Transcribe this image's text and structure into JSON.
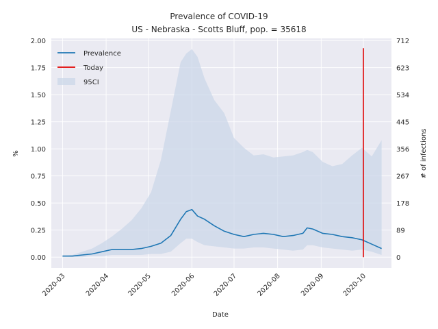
{
  "chart_data": {
    "type": "line",
    "title": "Prevalence of COVID-19",
    "subtitle": "US - Nebraska - Scotts Bluff, pop. = 35618",
    "xlabel": "Date",
    "ylabel": "%",
    "ylabel_right": "# of infections",
    "ylim": [
      -0.1,
      2.02
    ],
    "xlim": [
      "2020-02-22",
      "2020-10-21"
    ],
    "yticks": [
      "0.00",
      "0.25",
      "0.50",
      "0.75",
      "1.00",
      "1.25",
      "1.50",
      "1.75",
      "2.00"
    ],
    "yticks_right": [
      "0",
      "89",
      "178",
      "267",
      "356",
      "445",
      "534",
      "623",
      "712"
    ],
    "xticks": [
      "2020-03",
      "2020-04",
      "2020-05",
      "2020-06",
      "2020-07",
      "2020-08",
      "2020-09",
      "2020-10"
    ],
    "grid": true,
    "legend_position": "top-left",
    "legend": [
      "Prevalence",
      "Today",
      "95CI"
    ],
    "colors": {
      "prevalence": "#1f77b4",
      "today": "#e00000",
      "ci": "#c9d6e8",
      "background": "#eaeaf2",
      "grid": "#ffffff"
    },
    "today": "2020-10-01",
    "today_range": [
      0.0,
      1.93
    ],
    "series": [
      {
        "name": "Prevalence",
        "x": [
          "2020-03-01",
          "2020-03-08",
          "2020-03-15",
          "2020-03-22",
          "2020-03-29",
          "2020-04-05",
          "2020-04-12",
          "2020-04-19",
          "2020-04-26",
          "2020-05-03",
          "2020-05-10",
          "2020-05-17",
          "2020-05-24",
          "2020-05-28",
          "2020-06-01",
          "2020-06-05",
          "2020-06-10",
          "2020-06-17",
          "2020-06-24",
          "2020-07-01",
          "2020-07-08",
          "2020-07-15",
          "2020-07-22",
          "2020-07-29",
          "2020-08-05",
          "2020-08-12",
          "2020-08-19",
          "2020-08-22",
          "2020-08-26",
          "2020-09-02",
          "2020-09-09",
          "2020-09-16",
          "2020-09-23",
          "2020-09-30",
          "2020-10-07",
          "2020-10-14"
        ],
        "values": [
          0.01,
          0.01,
          0.02,
          0.03,
          0.05,
          0.07,
          0.07,
          0.07,
          0.08,
          0.1,
          0.13,
          0.2,
          0.35,
          0.42,
          0.44,
          0.38,
          0.35,
          0.29,
          0.24,
          0.21,
          0.19,
          0.21,
          0.22,
          0.21,
          0.19,
          0.2,
          0.22,
          0.27,
          0.26,
          0.22,
          0.21,
          0.19,
          0.18,
          0.16,
          0.12,
          0.08
        ]
      },
      {
        "name": "95CI",
        "x": [
          "2020-03-01",
          "2020-03-08",
          "2020-03-15",
          "2020-03-22",
          "2020-03-29",
          "2020-04-05",
          "2020-04-12",
          "2020-04-19",
          "2020-04-26",
          "2020-05-03",
          "2020-05-10",
          "2020-05-17",
          "2020-05-24",
          "2020-05-28",
          "2020-06-01",
          "2020-06-05",
          "2020-06-10",
          "2020-06-17",
          "2020-06-24",
          "2020-07-01",
          "2020-07-08",
          "2020-07-15",
          "2020-07-22",
          "2020-07-29",
          "2020-08-05",
          "2020-08-12",
          "2020-08-19",
          "2020-08-22",
          "2020-08-26",
          "2020-09-02",
          "2020-09-09",
          "2020-09-16",
          "2020-09-23",
          "2020-09-30",
          "2020-10-07",
          "2020-10-14"
        ],
        "upper": [
          0.01,
          0.02,
          0.05,
          0.08,
          0.13,
          0.19,
          0.26,
          0.34,
          0.45,
          0.6,
          0.9,
          1.35,
          1.8,
          1.88,
          1.92,
          1.85,
          1.65,
          1.45,
          1.33,
          1.1,
          1.01,
          0.94,
          0.95,
          0.92,
          0.93,
          0.94,
          0.97,
          0.99,
          0.97,
          0.88,
          0.84,
          0.86,
          0.94,
          1.01,
          0.93,
          1.08
        ],
        "lower": [
          0.0,
          0.0,
          0.0,
          0.01,
          0.01,
          0.02,
          0.02,
          0.02,
          0.02,
          0.03,
          0.03,
          0.05,
          0.13,
          0.17,
          0.17,
          0.14,
          0.11,
          0.1,
          0.09,
          0.08,
          0.08,
          0.09,
          0.09,
          0.08,
          0.07,
          0.06,
          0.07,
          0.11,
          0.11,
          0.09,
          0.08,
          0.07,
          0.06,
          0.07,
          0.05,
          0.02
        ]
      }
    ]
  }
}
